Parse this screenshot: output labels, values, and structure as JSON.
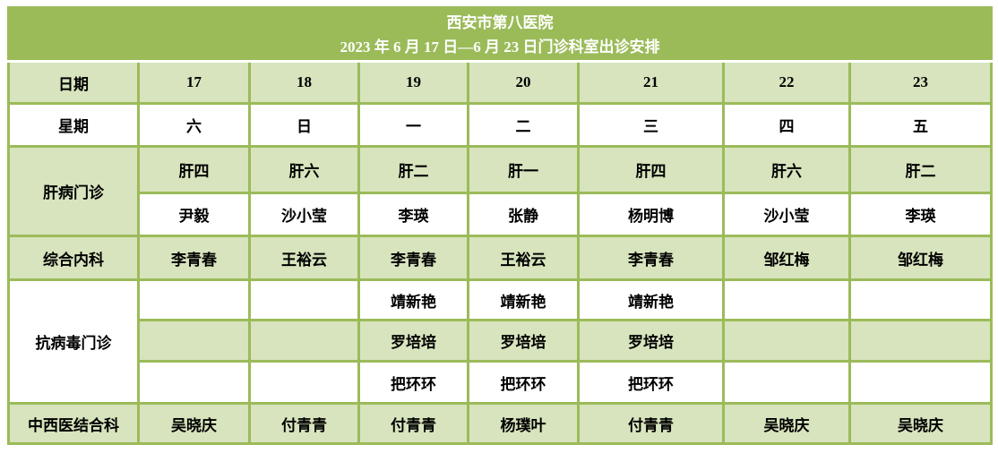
{
  "title": {
    "line1": "西安市第八医院",
    "line2": "2023 年 6 月 17 日—6 月 23 日门诊科室出诊安排"
  },
  "colors": {
    "header_bg": "#9bbb59",
    "band_bg": "#d7e4bd",
    "border": "#9bbb59",
    "header_text": "#ffffff",
    "cell_text": "#000000",
    "page_bg": "#ffffff"
  },
  "table": {
    "date_row": {
      "label": "日期",
      "values": [
        "17",
        "18",
        "19",
        "20",
        "21",
        "22",
        "23"
      ]
    },
    "week_row": {
      "label": "星期",
      "values": [
        "六",
        "日",
        "一",
        "二",
        "三",
        "四",
        "五"
      ]
    },
    "sections": [
      {
        "label": "肝病门诊",
        "rows": [
          [
            "肝四",
            "肝六",
            "肝二",
            "肝一",
            "肝四",
            "肝六",
            "肝二"
          ],
          [
            "尹毅",
            "沙小莹",
            "李瑛",
            "张静",
            "杨明博",
            "沙小莹",
            "李瑛"
          ]
        ]
      },
      {
        "label": "综合内科",
        "rows": [
          [
            "李青春",
            "王裕云",
            "李青春",
            "王裕云",
            "李青春",
            "邹红梅",
            "邹红梅"
          ]
        ]
      },
      {
        "label": "抗病毒门诊",
        "rows": [
          [
            "",
            "",
            "靖新艳",
            "靖新艳",
            "靖新艳",
            "",
            ""
          ],
          [
            "",
            "",
            "罗培培",
            "罗培培",
            "罗培培",
            "",
            ""
          ],
          [
            "",
            "",
            "把环环",
            "把环环",
            "把环环",
            "",
            ""
          ]
        ]
      },
      {
        "label": "中西医结合科",
        "rows": [
          [
            "吴晓庆",
            "付青青",
            "付青青",
            "杨璞叶",
            "付青青",
            "吴晓庆",
            "吴晓庆"
          ]
        ]
      }
    ]
  }
}
